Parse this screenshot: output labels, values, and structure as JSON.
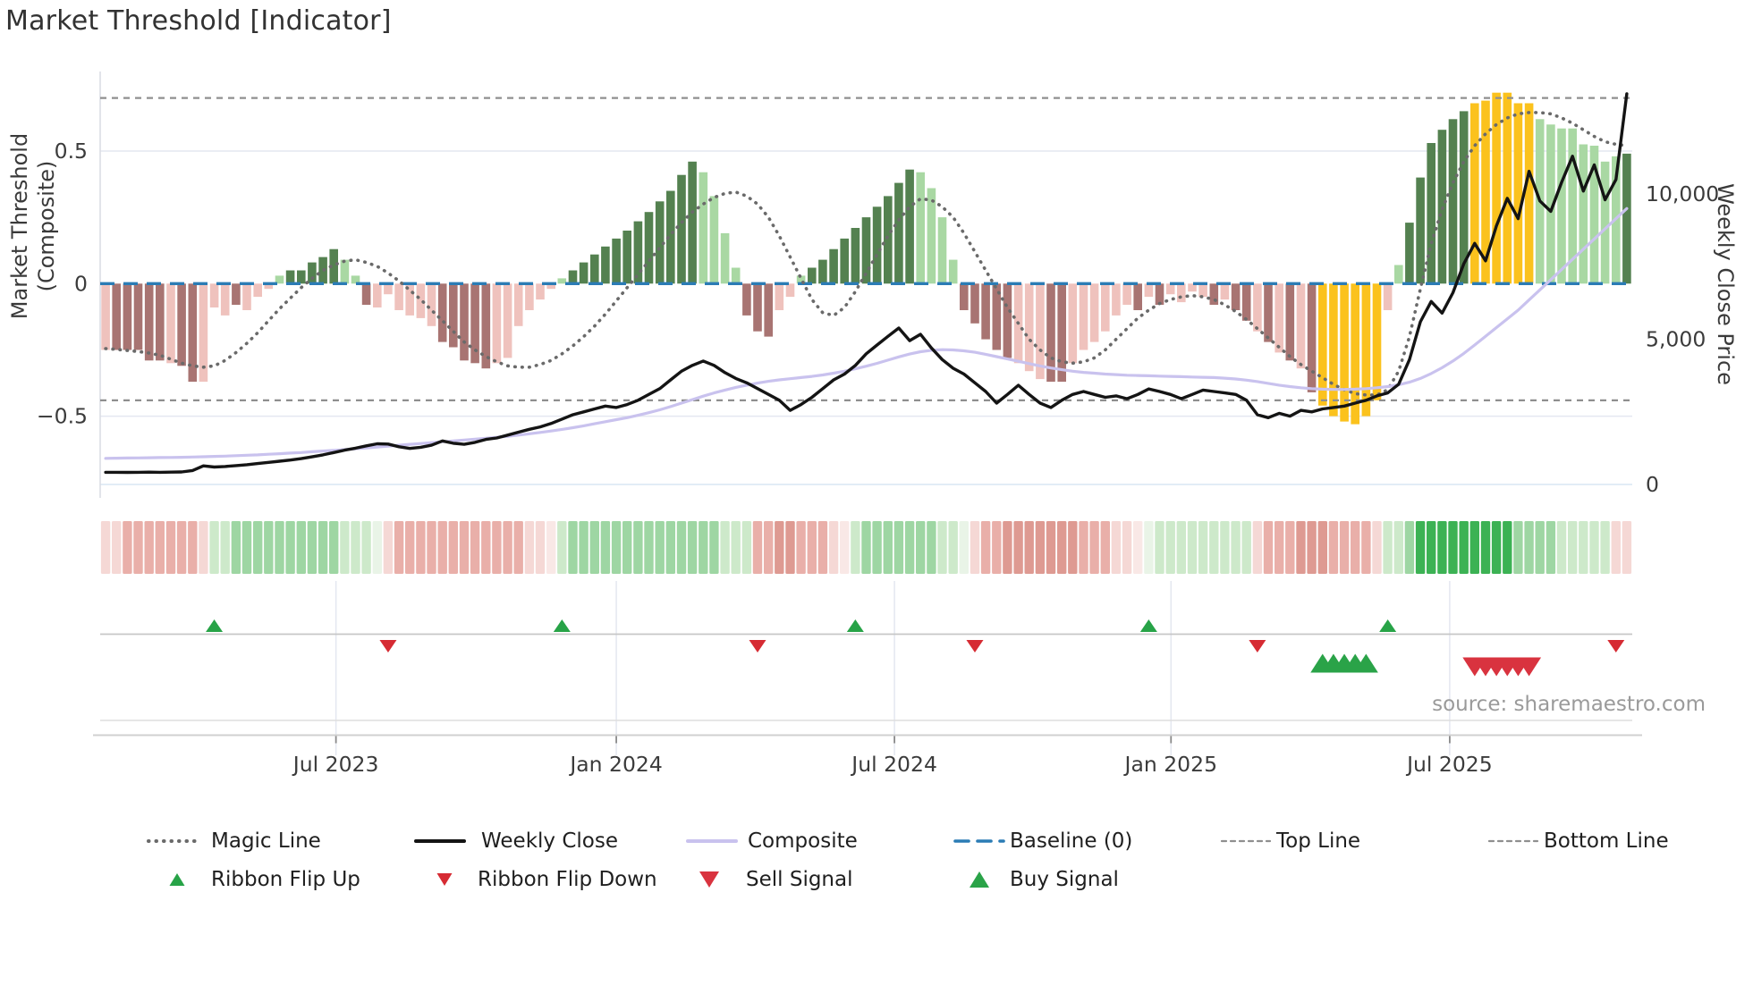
{
  "chart_data": {
    "type": "combo",
    "title": "Market Threshold [Indicator]",
    "source": "source: sharemaestro.com",
    "left_axis": {
      "label": "Market Threshold (Composite)",
      "ticks": [
        {
          "label": "0.5",
          "value": 0.5
        },
        {
          "label": "0",
          "value": 0
        },
        {
          "label": "−0.5",
          "value": -0.5
        }
      ],
      "ylim": [
        -0.81,
        0.8
      ],
      "baseline": 0,
      "top_line": 0.7,
      "bottom_line": -0.44
    },
    "right_axis": {
      "label": "Weekly Close Price",
      "ticks": [
        {
          "label": "10,000",
          "value": 10000
        },
        {
          "label": "5,000",
          "value": 5000
        },
        {
          "label": "0",
          "value": 0
        }
      ],
      "ylim": [
        -460,
        14200
      ]
    },
    "x_axis": {
      "ticks": [
        {
          "label": "Jul 2023",
          "week": 21.2
        },
        {
          "label": "Jan 2024",
          "week": 47.0
        },
        {
          "label": "Jul 2024",
          "week": 72.6
        },
        {
          "label": "Jan 2025",
          "week": 98.05
        },
        {
          "label": "Jul 2025",
          "week": 123.7
        }
      ]
    },
    "weeks": 141,
    "histogram": {
      "values": [
        -0.25,
        -0.25,
        -0.25,
        -0.25,
        -0.29,
        -0.29,
        -0.3,
        -0.31,
        -0.37,
        -0.37,
        -0.09,
        -0.12,
        -0.08,
        -0.1,
        -0.05,
        -0.02,
        0.03,
        0.05,
        0.05,
        0.08,
        0.1,
        0.13,
        0.09,
        0.03,
        -0.08,
        -0.09,
        -0.04,
        -0.1,
        -0.12,
        -0.13,
        -0.16,
        -0.22,
        -0.24,
        -0.29,
        -0.3,
        -0.32,
        -0.3,
        -0.28,
        -0.16,
        -0.1,
        -0.06,
        -0.02,
        0.02,
        0.05,
        0.08,
        0.11,
        0.14,
        0.17,
        0.2,
        0.235,
        0.27,
        0.31,
        0.35,
        0.41,
        0.46,
        0.42,
        0.33,
        0.19,
        0.06,
        -0.12,
        -0.18,
        -0.2,
        -0.1,
        -0.05,
        0.03,
        0.06,
        0.09,
        0.13,
        0.17,
        0.21,
        0.25,
        0.29,
        0.33,
        0.38,
        0.43,
        0.42,
        0.36,
        0.25,
        0.09,
        -0.1,
        -0.15,
        -0.21,
        -0.25,
        -0.28,
        -0.3,
        -0.33,
        -0.36,
        -0.37,
        -0.37,
        -0.3,
        -0.25,
        -0.22,
        -0.18,
        -0.12,
        -0.08,
        -0.1,
        -0.05,
        -0.08,
        -0.04,
        -0.07,
        -0.03,
        -0.05,
        -0.08,
        -0.06,
        -0.1,
        -0.14,
        -0.18,
        -0.22,
        -0.26,
        -0.29,
        -0.32,
        -0.41,
        -0.46,
        -0.5,
        -0.52,
        -0.53,
        -0.5,
        -0.44,
        -0.1,
        0.07,
        0.23,
        0.4,
        0.53,
        0.58,
        0.62,
        0.65,
        0.68,
        0.69,
        0.72,
        0.72,
        0.68,
        0.68,
        0.62,
        0.6,
        0.585,
        0.585,
        0.525,
        0.52,
        0.46,
        0.48,
        0.49
      ],
      "colors": [
        "lp",
        "dp",
        "dp",
        "dp",
        "dp",
        "dp",
        "lp",
        "dp",
        "dp",
        "lp",
        "lp",
        "lp",
        "dp",
        "lp",
        "lp",
        "lp",
        "lg",
        "dg",
        "dg",
        "dg",
        "dg",
        "dg",
        "lg",
        "lg",
        "dp",
        "lp",
        "lp",
        "lp",
        "lp",
        "lp",
        "lp",
        "dp",
        "dp",
        "dp",
        "dp",
        "dp",
        "lp",
        "lp",
        "lp",
        "lp",
        "lp",
        "lp",
        "lg",
        "dg",
        "dg",
        "dg",
        "dg",
        "dg",
        "dg",
        "dg",
        "dg",
        "dg",
        "dg",
        "dg",
        "dg",
        "lg",
        "lg",
        "lg",
        "lg",
        "dp",
        "dp",
        "dp",
        "lp",
        "lp",
        "lg",
        "dg",
        "dg",
        "dg",
        "dg",
        "dg",
        "dg",
        "dg",
        "dg",
        "dg",
        "dg",
        "lg",
        "lg",
        "lg",
        "lg",
        "dp",
        "dp",
        "dp",
        "dp",
        "dp",
        "lp",
        "lp",
        "lp",
        "dp",
        "dp",
        "lp",
        "lp",
        "lp",
        "lp",
        "lp",
        "lp",
        "dp",
        "lp",
        "dp",
        "lp",
        "lp",
        "lp",
        "lp",
        "dp",
        "lp",
        "dp",
        "dp",
        "lp",
        "dp",
        "lp",
        "dp",
        "lp",
        "dp",
        "y",
        "y",
        "y",
        "y",
        "y",
        "y",
        "lp",
        "lg",
        "dg",
        "dg",
        "dg",
        "dg",
        "dg",
        "dg",
        "y",
        "y",
        "y",
        "y",
        "y",
        "y",
        "lg",
        "lg",
        "lg",
        "lg",
        "lg",
        "lg",
        "lg",
        "lg",
        "dg"
      ]
    },
    "magic_line": [
      -0.245,
      -0.248,
      -0.252,
      -0.256,
      -0.262,
      -0.27,
      -0.285,
      -0.3,
      -0.31,
      -0.315,
      -0.31,
      -0.29,
      -0.26,
      -0.225,
      -0.185,
      -0.14,
      -0.095,
      -0.055,
      -0.015,
      0.02,
      0.05,
      0.07,
      0.085,
      0.09,
      0.08,
      0.065,
      0.04,
      0.01,
      -0.025,
      -0.06,
      -0.1,
      -0.14,
      -0.18,
      -0.22,
      -0.25,
      -0.275,
      -0.295,
      -0.31,
      -0.315,
      -0.315,
      -0.305,
      -0.29,
      -0.265,
      -0.235,
      -0.2,
      -0.16,
      -0.115,
      -0.065,
      -0.015,
      0.035,
      0.085,
      0.135,
      0.185,
      0.23,
      0.27,
      0.3,
      0.325,
      0.34,
      0.345,
      0.33,
      0.3,
      0.25,
      0.18,
      0.1,
      0.02,
      -0.06,
      -0.11,
      -0.12,
      -0.09,
      -0.03,
      0.04,
      0.11,
      0.18,
      0.24,
      0.29,
      0.32,
      0.315,
      0.29,
      0.25,
      0.19,
      0.12,
      0.05,
      -0.02,
      -0.09,
      -0.15,
      -0.21,
      -0.25,
      -0.28,
      -0.295,
      -0.3,
      -0.295,
      -0.28,
      -0.25,
      -0.21,
      -0.17,
      -0.13,
      -0.1,
      -0.075,
      -0.06,
      -0.05,
      -0.045,
      -0.05,
      -0.06,
      -0.08,
      -0.105,
      -0.135,
      -0.17,
      -0.205,
      -0.24,
      -0.275,
      -0.305,
      -0.33,
      -0.355,
      -0.38,
      -0.4,
      -0.415,
      -0.42,
      -0.42,
      -0.4,
      -0.33,
      -0.2,
      -0.02,
      0.15,
      0.28,
      0.38,
      0.46,
      0.52,
      0.565,
      0.6,
      0.625,
      0.64,
      0.645,
      0.645,
      0.64,
      0.625,
      0.605,
      0.58,
      0.555,
      0.535,
      0.525,
      0.52
    ],
    "weekly_close": [
      420,
      420,
      415,
      420,
      425,
      420,
      425,
      430,
      480,
      640,
      600,
      620,
      650,
      680,
      720,
      760,
      800,
      840,
      890,
      950,
      1020,
      1100,
      1180,
      1250,
      1330,
      1400,
      1390,
      1300,
      1240,
      1280,
      1350,
      1500,
      1420,
      1380,
      1450,
      1550,
      1600,
      1700,
      1800,
      1900,
      1980,
      2100,
      2250,
      2400,
      2500,
      2600,
      2700,
      2650,
      2750,
      2900,
      3100,
      3300,
      3600,
      3900,
      4100,
      4250,
      4100,
      3850,
      3650,
      3500,
      3300,
      3100,
      2900,
      2550,
      2750,
      3000,
      3300,
      3600,
      3800,
      4100,
      4500,
      4800,
      5100,
      5385,
      4950,
      5170,
      4700,
      4300,
      4000,
      3800,
      3500,
      3200,
      2800,
      3100,
      3415,
      3100,
      2800,
      2650,
      2900,
      3100,
      3200,
      3100,
      3000,
      3050,
      2950,
      3100,
      3290,
      3200,
      3100,
      2950,
      3100,
      3250,
      3200,
      3150,
      3100,
      2900,
      2400,
      2300,
      2450,
      2350,
      2550,
      2500,
      2600,
      2650,
      2700,
      2800,
      2900,
      3050,
      3150,
      3450,
      4300,
      5600,
      6300,
      5900,
      6600,
      7600,
      8300,
      7700,
      8900,
      9850,
      9150,
      10780,
      9760,
      9400,
      10400,
      11300,
      10100,
      11000,
      9800,
      10500,
      13450
    ],
    "composite": [
      900,
      905,
      910,
      915,
      920,
      925,
      930,
      935,
      945,
      955,
      965,
      975,
      990,
      1005,
      1020,
      1040,
      1060,
      1080,
      1100,
      1125,
      1150,
      1175,
      1200,
      1230,
      1260,
      1290,
      1320,
      1350,
      1380,
      1410,
      1440,
      1470,
      1500,
      1530,
      1560,
      1590,
      1625,
      1660,
      1700,
      1745,
      1790,
      1840,
      1895,
      1955,
      2020,
      2090,
      2160,
      2230,
      2300,
      2380,
      2470,
      2570,
      2680,
      2800,
      2920,
      3040,
      3150,
      3250,
      3340,
      3420,
      3490,
      3550,
      3600,
      3640,
      3680,
      3720,
      3770,
      3830,
      3900,
      3980,
      4070,
      4170,
      4280,
      4390,
      4490,
      4570,
      4620,
      4640,
      4630,
      4600,
      4550,
      4480,
      4400,
      4320,
      4240,
      4160,
      4080,
      4010,
      3950,
      3900,
      3860,
      3830,
      3800,
      3780,
      3760,
      3750,
      3740,
      3730,
      3720,
      3710,
      3700,
      3690,
      3680,
      3660,
      3630,
      3590,
      3540,
      3480,
      3420,
      3370,
      3330,
      3300,
      3280,
      3270,
      3270,
      3280,
      3300,
      3330,
      3370,
      3430,
      3520,
      3650,
      3820,
      4020,
      4250,
      4510,
      4800,
      5100,
      5400,
      5700,
      6000,
      6350,
      6700,
      7050,
      7400,
      7750,
      8100,
      8450,
      8800,
      9150,
      9500
    ],
    "ribbon": [
      "lp",
      "lp",
      "mp",
      "mp",
      "mp",
      "mp",
      "mp",
      "mp",
      "mp",
      "lp",
      "lg",
      "lg",
      "mg",
      "mg",
      "mg",
      "mg",
      "mg",
      "mg",
      "mg",
      "mg",
      "mg",
      "mg",
      "lg",
      "lg",
      "lg",
      "vg",
      "lp",
      "mp",
      "mp",
      "mp",
      "mp",
      "mp",
      "mp",
      "mp",
      "mp",
      "mp",
      "mp",
      "mp",
      "mp",
      "lp",
      "lp",
      "vp",
      "lg",
      "mg",
      "mg",
      "mg",
      "mg",
      "mg",
      "mg",
      "mg",
      "mg",
      "mg",
      "mg",
      "mg",
      "mg",
      "mg",
      "mg",
      "lg",
      "lg",
      "lg",
      "mp",
      "mp",
      "dp",
      "dp",
      "mp",
      "mp",
      "mp",
      "lp",
      "vp",
      "lg",
      "mg",
      "mg",
      "mg",
      "mg",
      "mg",
      "mg",
      "mg",
      "lg",
      "lg",
      "vg",
      "lp",
      "mp",
      "mp",
      "dp",
      "dp",
      "dp",
      "dp",
      "dp",
      "dp",
      "dp",
      "mp",
      "mp",
      "mp",
      "lp",
      "lp",
      "vp",
      "vg",
      "lg",
      "lg",
      "lg",
      "lg",
      "lg",
      "lg",
      "lg",
      "lg",
      "lg",
      "lp",
      "mp",
      "mp",
      "mp",
      "dp",
      "dp",
      "dp",
      "mp",
      "mp",
      "mp",
      "mp",
      "lp",
      "lg",
      "lg",
      "mg",
      "gg",
      "gg",
      "gg",
      "gg",
      "gg",
      "gg",
      "gg",
      "gg",
      "gg",
      "mg",
      "mg",
      "mg",
      "mg",
      "lg",
      "lg",
      "lg",
      "lg",
      "lg",
      "lp",
      "lp"
    ],
    "signals": {
      "ribbon_flip_up_weeks": [
        10,
        42,
        69,
        96,
        118
      ],
      "ribbon_flip_down_weeks": [
        26,
        60,
        80,
        106,
        139
      ],
      "buy_signal_weeks": [
        112,
        113,
        114,
        115,
        116
      ],
      "sell_signal_weeks": [
        126,
        127,
        128,
        129,
        130,
        131
      ]
    },
    "legend": {
      "row1": [
        {
          "label": "Magic Line",
          "type": "dotted-gray"
        },
        {
          "label": "Weekly Close",
          "type": "solid-black"
        },
        {
          "label": "Composite",
          "type": "solid-purple"
        },
        {
          "label": "Baseline (0)",
          "type": "dashed-blue"
        },
        {
          "label": "Top Line",
          "type": "dashed-gray"
        },
        {
          "label": "Bottom Line",
          "type": "dashed-gray"
        }
      ],
      "row2": [
        {
          "label": "Ribbon Flip Up",
          "type": "tri-up-small"
        },
        {
          "label": "Ribbon Flip Down",
          "type": "tri-down-small"
        },
        {
          "label": "Sell Signal",
          "type": "tri-down-large"
        },
        {
          "label": "Buy Signal",
          "type": "tri-up-large"
        }
      ]
    },
    "palette": {
      "bar": {
        "dg": "#548150",
        "lg": "#a9d8a3",
        "dp": "#a87472",
        "lp": "#efc2bd",
        "y": "#fbc21d"
      },
      "ribbon": {
        "gg": "#3cb254",
        "mg": "#9ed6a3",
        "lg": "#cde9ca",
        "vg": "#e9f4e7",
        "vp": "#f9e8e6",
        "lp": "#f5d8d5",
        "mp": "#e9afa9",
        "dp": "#de9a92"
      },
      "lines": {
        "magic": "#6a6a6a",
        "close": "#141414",
        "composite": "#c9c2ee",
        "baseline": "#2b7cb5",
        "topline": "#8f8f8f",
        "bottomline": "#8f8f8f"
      },
      "signals": {
        "up": "#27a347",
        "down": "#d62b33",
        "buy": "#2aa348",
        "sell": "#d9333f"
      },
      "grid": "#e4e7f0",
      "grid_price": "#d8e6f4",
      "spine": "#d9dce3",
      "flip_row_line": "#c6c6c6",
      "axis_line": "#d0d0d0",
      "text": "#3b3b3b",
      "muted": "#9a9a9a"
    }
  }
}
